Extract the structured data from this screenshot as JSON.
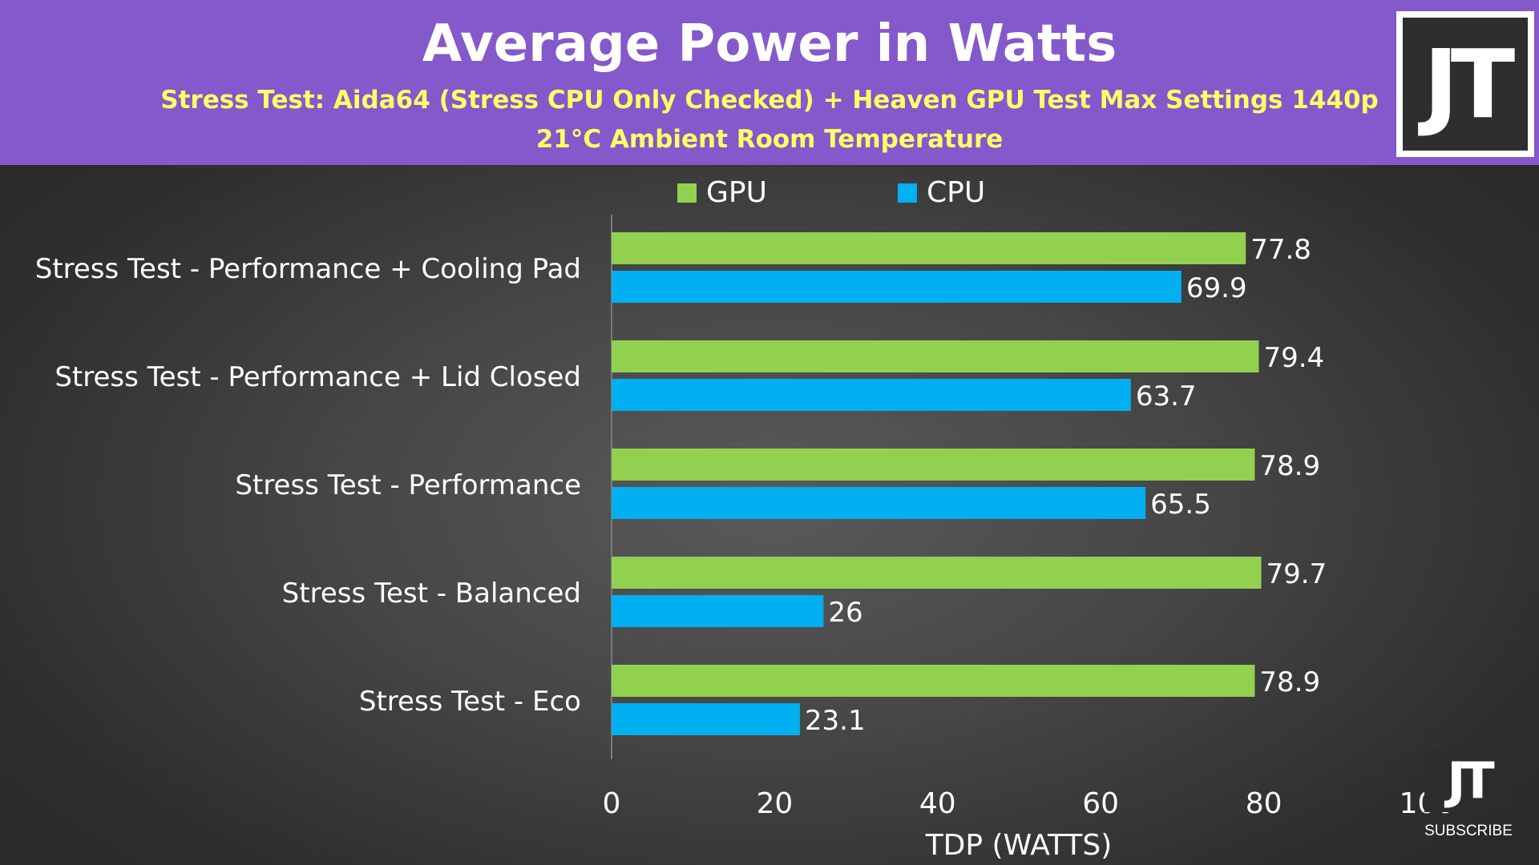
{
  "header": {
    "logo_text": "JT"
  },
  "watermark": {
    "logo_text": "JT",
    "subscribe_label": "SUBSCRIBE"
  },
  "colors": {
    "header_bg": "#8359cc",
    "title": "#ffffff",
    "subtitle": "#ffff66",
    "gpu": "#92d050",
    "cpu": "#00b0f0",
    "text": "#ffffff"
  },
  "chart_data": {
    "type": "bar",
    "orientation": "horizontal",
    "title": "Average Power in Watts",
    "subtitle": "Stress Test: Aida64 (Stress CPU Only Checked) + Heaven GPU Test Max Settings 1440p",
    "subtitle2": "21°C Ambient Room Temperature",
    "xlabel": "TDP (WATTS)",
    "ylabel": "",
    "xlim": [
      0,
      100
    ],
    "x_ticks": [
      0,
      20,
      40,
      60,
      80,
      100
    ],
    "x_tick_labels": [
      "0",
      "20",
      "40",
      "60",
      "80",
      "100"
    ],
    "grid": false,
    "legend_position": "top",
    "categories": [
      "Stress Test - Performance + Cooling Pad",
      "Stress Test - Performance + Lid Closed",
      "Stress Test - Performance",
      "Stress Test - Balanced",
      "Stress Test - Eco"
    ],
    "series": [
      {
        "name": "GPU",
        "color": "#92d050",
        "values": [
          77.8,
          79.4,
          78.9,
          79.7,
          78.9
        ],
        "data_labels": [
          "77.8",
          "79.4",
          "78.9",
          "79.7",
          "78.9"
        ]
      },
      {
        "name": "CPU",
        "color": "#00b0f0",
        "values": [
          69.9,
          63.7,
          65.5,
          26,
          23.1
        ],
        "data_labels": [
          "69.9",
          "63.7",
          "65.5",
          "26",
          "23.1"
        ]
      }
    ]
  }
}
